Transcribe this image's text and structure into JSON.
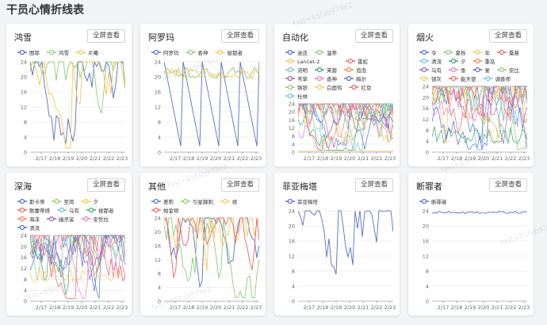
{
  "page": {
    "title": "干员心情折线表",
    "watermark": "fast+85fab979e2"
  },
  "button_label": "全屏查看",
  "colors": [
    "#5470c6",
    "#91cc75",
    "#fac858",
    "#ee6666",
    "#73c0de",
    "#3ba272",
    "#fc8452",
    "#9a60b4",
    "#ea7ccc"
  ],
  "chart_data": [
    {
      "type": "line",
      "title": "鸿雪",
      "series": [
        {
          "name": "图耶"
        },
        {
          "name": "鸿雪"
        },
        {
          "name": "炎曦"
        }
      ],
      "x_ticks": [
        "2/17",
        "2/18",
        "2/19",
        "2/20",
        "2/21",
        "2/22",
        "2/23"
      ],
      "y_ticks": [
        0,
        4,
        8,
        12,
        16,
        20,
        24
      ],
      "ylim": [
        0,
        24
      ]
    },
    {
      "type": "line",
      "title": "阿罗玛",
      "series": [
        {
          "name": "阿罗玛"
        },
        {
          "name": "香神"
        },
        {
          "name": "拔都者"
        }
      ],
      "x_ticks": [
        "2/17",
        "2/18",
        "2/19",
        "2/20",
        "2/21",
        "2/22",
        "2/23"
      ],
      "y_ticks": [
        0,
        4,
        8,
        12,
        16,
        20,
        24
      ],
      "ylim": [
        0,
        24
      ]
    },
    {
      "type": "line",
      "title": "自动化",
      "series": [
        {
          "name": "迷迭"
        },
        {
          "name": "温蒂"
        },
        {
          "name": "Lancet-2"
        },
        {
          "name": "雷蛇"
        },
        {
          "name": "流明"
        },
        {
          "name": "芙蓉"
        },
        {
          "name": "泡泡"
        },
        {
          "name": "苇草"
        },
        {
          "name": "香神"
        },
        {
          "name": "梅尔"
        },
        {
          "name": "铸铁"
        },
        {
          "name": "白面鸮"
        },
        {
          "name": "红豆"
        },
        {
          "name": "杜林"
        }
      ],
      "x_ticks": [
        "2/17",
        "2/18",
        "2/19",
        "2/20",
        "2/21",
        "2/22",
        "2/23"
      ],
      "y_ticks": [
        0,
        4,
        8,
        12,
        16,
        20,
        24
      ],
      "ylim": [
        0,
        24
      ]
    },
    {
      "type": "line",
      "title": "烟火",
      "series": [
        {
          "name": "令"
        },
        {
          "name": "夏栎"
        },
        {
          "name": "年"
        },
        {
          "name": "桑葚"
        },
        {
          "name": "清流"
        },
        {
          "name": "夕"
        },
        {
          "name": "重岳"
        },
        {
          "name": "乌有"
        },
        {
          "name": "黍"
        },
        {
          "name": "宴"
        },
        {
          "name": "安比"
        },
        {
          "name": "银灰"
        },
        {
          "name": "能天使"
        },
        {
          "name": "调香师"
        }
      ],
      "x_ticks": [
        "2/17",
        "2/18",
        "2/19",
        "2/20",
        "2/21",
        "2/22",
        "2/23"
      ],
      "y_ticks": [
        0,
        4,
        8,
        12,
        16,
        20,
        24
      ],
      "ylim": [
        0,
        24
      ]
    },
    {
      "type": "line",
      "title": "深海",
      "series": [
        {
          "name": "斯卡蒂"
        },
        {
          "name": "至简"
        },
        {
          "name": "夕"
        },
        {
          "name": "歌蕾蒂娅"
        },
        {
          "name": "乌有"
        },
        {
          "name": "拔都者"
        },
        {
          "name": "海沫"
        },
        {
          "name": "幽灵鲨"
        },
        {
          "name": "安哲拉"
        },
        {
          "name": "清流"
        }
      ],
      "x_ticks": [
        "2/17",
        "2/18",
        "2/19",
        "2/20",
        "2/21",
        "2/22",
        "2/23"
      ],
      "y_ticks": [
        0,
        4,
        8,
        12,
        16,
        20,
        24
      ],
      "ylim": [
        0,
        24
      ]
    },
    {
      "type": "line",
      "title": "其他",
      "series": [
        {
          "name": "差莉"
        },
        {
          "name": "引星棘刺"
        },
        {
          "name": "娅"
        },
        {
          "name": "帕金顿"
        }
      ],
      "x_ticks": [
        "2/17",
        "2/18",
        "2/19",
        "2/20",
        "2/21",
        "2/22",
        "2/23"
      ],
      "y_ticks": [
        0,
        4,
        8,
        12,
        16,
        20,
        24
      ],
      "ylim": [
        0,
        24
      ]
    },
    {
      "type": "line",
      "title": "菲亚梅塔",
      "series": [
        {
          "name": "菲亚梅塔"
        }
      ],
      "x_ticks": [
        "2/17",
        "2/18",
        "2/19",
        "2/20",
        "2/21",
        "2/22",
        "2/23"
      ],
      "y_ticks": [
        0,
        4,
        8,
        12,
        16,
        20,
        24
      ],
      "ylim": [
        0,
        24
      ]
    },
    {
      "type": "line",
      "title": "断罪者",
      "series": [
        {
          "name": "断罪者"
        }
      ],
      "x_ticks": [
        "2/17",
        "2/18",
        "2/19",
        "2/20",
        "2/21",
        "2/22",
        "2/23"
      ],
      "y_ticks": [
        0,
        4,
        8,
        12,
        16,
        20,
        24
      ],
      "ylim": [
        0,
        24
      ]
    }
  ]
}
